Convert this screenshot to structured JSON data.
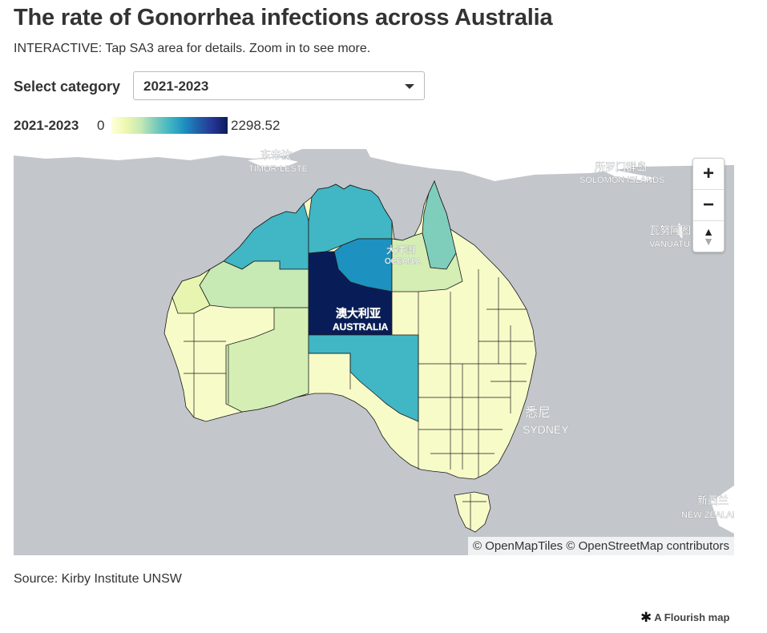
{
  "title": "The rate of Gonorrhea infections across Australia",
  "subtitle": "INTERACTIVE: Tap SA3 area for details. Zoom in to see more.",
  "control": {
    "label": "Select category",
    "selected": "2021-2023"
  },
  "legend": {
    "title": "2021-2023",
    "min": "0",
    "max": "2298.52",
    "colors": [
      "#ffffd9",
      "#edf8b1",
      "#c7e9b4",
      "#7fcdbb",
      "#41b6c4",
      "#1d91c0",
      "#225ea8",
      "#253494",
      "#081d58"
    ]
  },
  "map": {
    "labels": {
      "timor_cn": "东帝汶",
      "timor_en": "TIMOR-LESTE",
      "solomon_cn": "所罗门群岛",
      "solomon_en": "SOLOMON ISLANDS",
      "vanuatu_cn": "瓦努阿图",
      "vanuatu_en": "VANUATU",
      "oceania_cn": "大洋洲",
      "oceania_en": "OCEANIA",
      "australia_cn": "澳大利亚",
      "australia_en": "AUSTRALIA",
      "sydney_cn": "悉尼",
      "sydney_en": "SYDNEY",
      "nz_cn": "新西兰",
      "nz_en": "NEW ZEALAND"
    },
    "zoom_in": "+",
    "zoom_out": "−",
    "attribution": "© OpenMapTiles © OpenStreetMap contributors",
    "ocean_color": "#c3c7cb",
    "land_color": "#ffffff",
    "border_color": "#1a1a1a"
  },
  "source": "Source: Kirby Institute UNSW",
  "credit": "A Flourish map"
}
